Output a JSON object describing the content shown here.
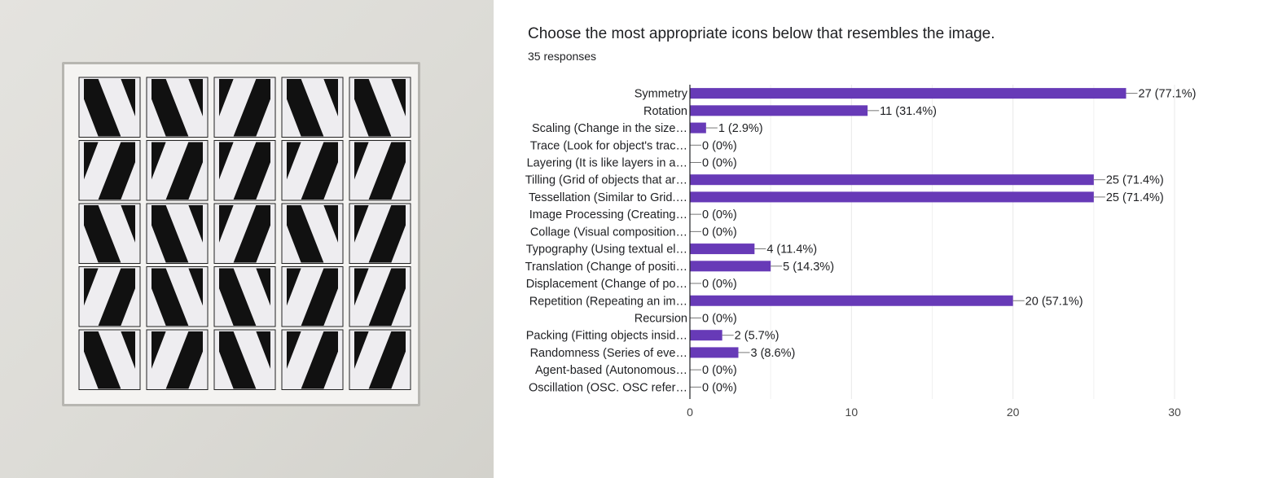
{
  "photo": {
    "description_alt": "Framed grid of black-and-white N-shaped tiles"
  },
  "survey": {
    "question": "Choose the most appropriate icons below that resembles the image.",
    "responses_label": "35 responses"
  },
  "colors": {
    "bar": "#673ab7",
    "axis": "#202124",
    "grid": "#e8e8e8",
    "connector": "#777777"
  },
  "chart_data": {
    "type": "bar",
    "orientation": "horizontal",
    "categories": [
      "Symmetry",
      "Rotation",
      "Scaling (Change in the size…",
      "Trace (Look for object's trac…",
      "Layering (It is like layers in a…",
      "Tilling (Grid of objects that ar…",
      "Tessellation (Similar to Grid.…",
      "Image Processing (Creating…",
      "Collage (Visual composition…",
      "Typography (Using textual el…",
      "Translation (Change of positi…",
      "Displacement (Change of po…",
      "Repetition (Repeating an im…",
      "Recursion",
      "Packing (Fitting objects insid…",
      "Randomness (Series of eve…",
      "Agent-based (Autonomous…",
      "Oscillation (OSC. OSC refer…"
    ],
    "values": [
      27,
      11,
      1,
      0,
      0,
      25,
      25,
      0,
      0,
      4,
      5,
      0,
      20,
      0,
      2,
      3,
      0,
      0
    ],
    "value_labels": [
      "27 (77.1%)",
      "11 (31.4%)",
      "1 (2.9%)",
      "0 (0%)",
      "0 (0%)",
      "25 (71.4%)",
      "25 (71.4%)",
      "0 (0%)",
      "0 (0%)",
      "4 (11.4%)",
      "5 (14.3%)",
      "0 (0%)",
      "20 (57.1%)",
      "0 (0%)",
      "2 (5.7%)",
      "3 (8.6%)",
      "0 (0%)",
      "0 (0%)"
    ],
    "xlim": [
      0,
      30
    ],
    "xticks": [
      0,
      10,
      20,
      30
    ],
    "grid": true,
    "title": "Choose the most appropriate icons below that resembles the image.",
    "subtitle": "35 responses"
  }
}
